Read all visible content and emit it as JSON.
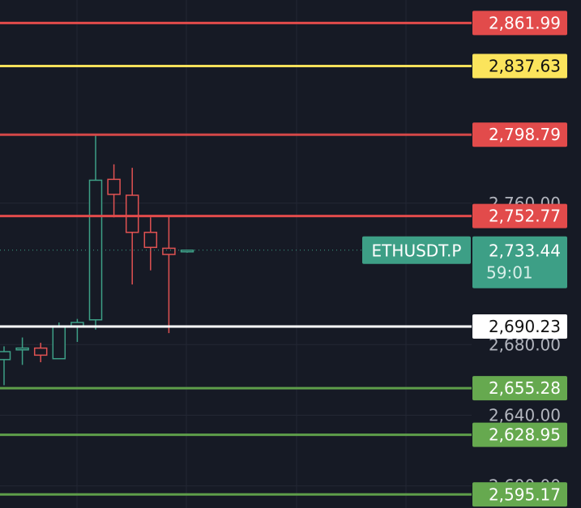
{
  "chart_data": {
    "type": "candlestick",
    "symbol": "ETHUSDT.P",
    "ylim": [
      2587.5,
      2875.0
    ],
    "grid": true,
    "price_scale_labels": [
      "2,760.00",
      "2,680.00",
      "2,640.00",
      "2,600.00"
    ],
    "current_price": {
      "value": 2733.44,
      "label": "2,733.44",
      "countdown": "59:01",
      "color": "#3d9f86"
    },
    "levels": [
      {
        "label": "2,861.99",
        "value": 2861.99,
        "line_color": "#e24b4b",
        "badge_color": "#e24b4b",
        "text_color": "#ffffff"
      },
      {
        "label": "2,837.63",
        "value": 2837.63,
        "line_color": "#f5e05a",
        "badge_color": "#fbe45c",
        "text_color": "#111111"
      },
      {
        "label": "2,798.79",
        "value": 2798.79,
        "line_color": "#d44848",
        "badge_color": "#e24b4b",
        "text_color": "#ffffff"
      },
      {
        "label": "2,752.77",
        "value": 2752.77,
        "line_color": "#e24b4b",
        "badge_color": "#e24b4b",
        "text_color": "#ffffff"
      },
      {
        "label": "2,690.23",
        "value": 2690.23,
        "line_color": "#ffffff",
        "badge_color": "#ffffff",
        "text_color": "#111111"
      },
      {
        "label": "2,655.28",
        "value": 2655.28,
        "line_color": "#5e9e4a",
        "badge_color": "#66a94f",
        "text_color": "#ffffff"
      },
      {
        "label": "2,628.95",
        "value": 2628.95,
        "line_color": "#5e9e4a",
        "badge_color": "#66a94f",
        "text_color": "#ffffff"
      },
      {
        "label": "2,595.17",
        "value": 2595.17,
        "line_color": "#5e9e4a",
        "badge_color": "#66a94f",
        "text_color": "#ffffff"
      }
    ],
    "candles": [
      {
        "o": 2671.5,
        "h": 2679.0,
        "l": 2657.0,
        "c": 2676.0
      },
      {
        "o": 2677.0,
        "h": 2684.0,
        "l": 2668.5,
        "c": 2678.0
      },
      {
        "o": 2678.0,
        "h": 2681.0,
        "l": 2670.0,
        "c": 2674.0
      },
      {
        "o": 2672.0,
        "h": 2692.5,
        "l": 2672.0,
        "c": 2690.5
      },
      {
        "o": 2690.0,
        "h": 2694.5,
        "l": 2681.5,
        "c": 2692.5
      },
      {
        "o": 2694.0,
        "h": 2798.5,
        "l": 2688.5,
        "c": 2773.0
      },
      {
        "o": 2773.5,
        "h": 2782.0,
        "l": 2752.0,
        "c": 2765.0
      },
      {
        "o": 2764.5,
        "h": 2780.0,
        "l": 2714.0,
        "c": 2743.5
      },
      {
        "o": 2743.5,
        "h": 2752.0,
        "l": 2722.0,
        "c": 2735.0
      },
      {
        "o": 2734.5,
        "h": 2752.5,
        "l": 2686.5,
        "c": 2731.0
      },
      {
        "o": 2732.5,
        "h": 2733.5,
        "l": 2732.0,
        "c": 2733.4
      }
    ],
    "colors": {
      "up": "#3d9f86",
      "down": "#e05252",
      "background": "#161a25",
      "grid": "#232734",
      "scale_text": "#b2b5be"
    }
  }
}
